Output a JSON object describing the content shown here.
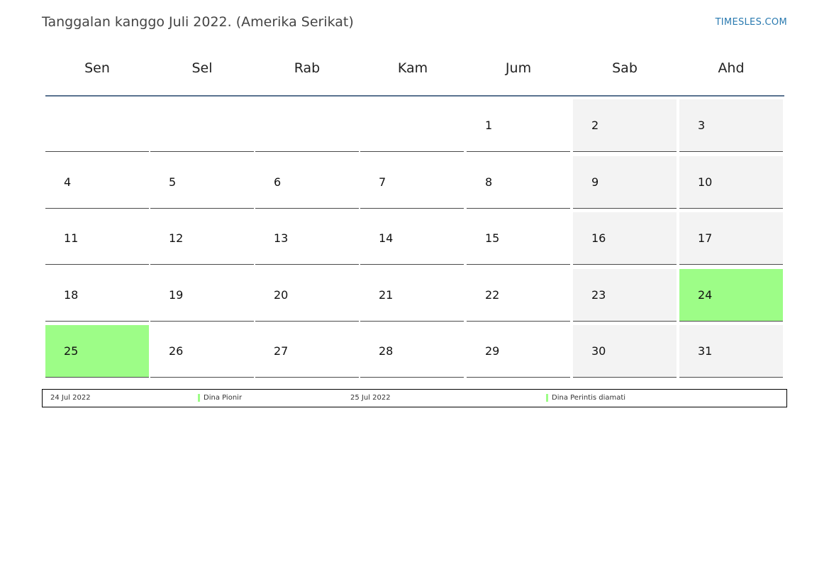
{
  "header": {
    "title": "Tanggalan kanggo Juli 2022. (Amerika Serikat)",
    "site": "TIMESLES.COM"
  },
  "weekdays": [
    "Sen",
    "Sel",
    "Rab",
    "Kam",
    "Jum",
    "Sab",
    "Ahd"
  ],
  "weeks": [
    [
      "",
      "",
      "",
      "",
      "1",
      "2",
      "3"
    ],
    [
      "4",
      "5",
      "6",
      "7",
      "8",
      "9",
      "10"
    ],
    [
      "11",
      "12",
      "13",
      "14",
      "15",
      "16",
      "17"
    ],
    [
      "18",
      "19",
      "20",
      "21",
      "22",
      "23",
      "24"
    ],
    [
      "25",
      "26",
      "27",
      "28",
      "29",
      "30",
      "31"
    ]
  ],
  "colors": {
    "weekend": "#f3f3f3",
    "holiday": "#9dfd87",
    "header_rule": "#5a7390",
    "site_link": "#2a7ab0"
  },
  "holiday_days": [
    "24",
    "25"
  ],
  "legend": [
    {
      "date": "24 Jul 2022",
      "name": "Dina Pionir"
    },
    {
      "date": "25 Jul 2022",
      "name": "Dina Perintis diamati"
    }
  ]
}
